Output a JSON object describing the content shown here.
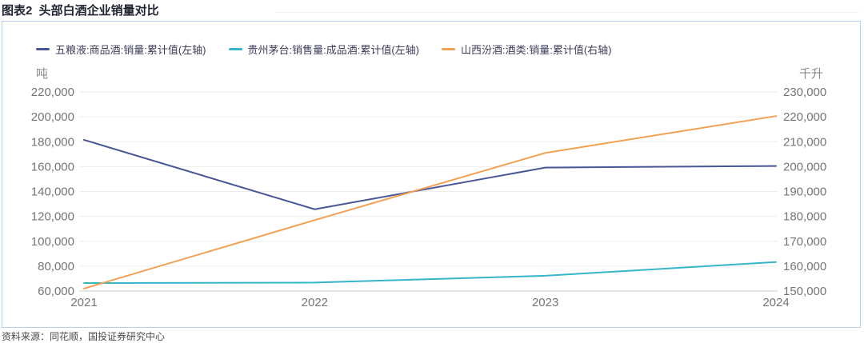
{
  "page": {
    "title": "图表2  头部白酒企业销量对比",
    "source_note": "资料来源：同花顺，国投证券研究中心"
  },
  "chart_data": {
    "type": "line",
    "title": "图表2 头部白酒企业销量对比",
    "x": [
      "2021",
      "2022",
      "2023",
      "2024"
    ],
    "series": [
      {
        "name": "五粮液:商品酒:销量:累计值(左轴)",
        "axis": "left",
        "color": "#4a5796",
        "values": [
          181500,
          125700,
          159200,
          160500
        ]
      },
      {
        "name": "贵州茅台:销售量:成品酒:累计值(左轴)",
        "axis": "left",
        "color": "#36b6c8",
        "values": [
          66400,
          66800,
          72300,
          83300
        ]
      },
      {
        "name": "山西汾酒:酒类:销量:累计值(右轴)",
        "axis": "right",
        "color": "#f2a154",
        "values": [
          151000,
          178500,
          205500,
          220300
        ]
      }
    ],
    "left_axis": {
      "unit": "吨",
      "min": 60000,
      "max": 220000,
      "step": 20000
    },
    "right_axis": {
      "unit": "千升",
      "min": 150000,
      "max": 230000,
      "step": 10000
    },
    "grid": true,
    "legend_position": "top",
    "panel_border_color": "#b4d0ec",
    "gridline_color": "#ededed",
    "axisline_color": "#cccccc",
    "tick_label_color": "#757575"
  }
}
